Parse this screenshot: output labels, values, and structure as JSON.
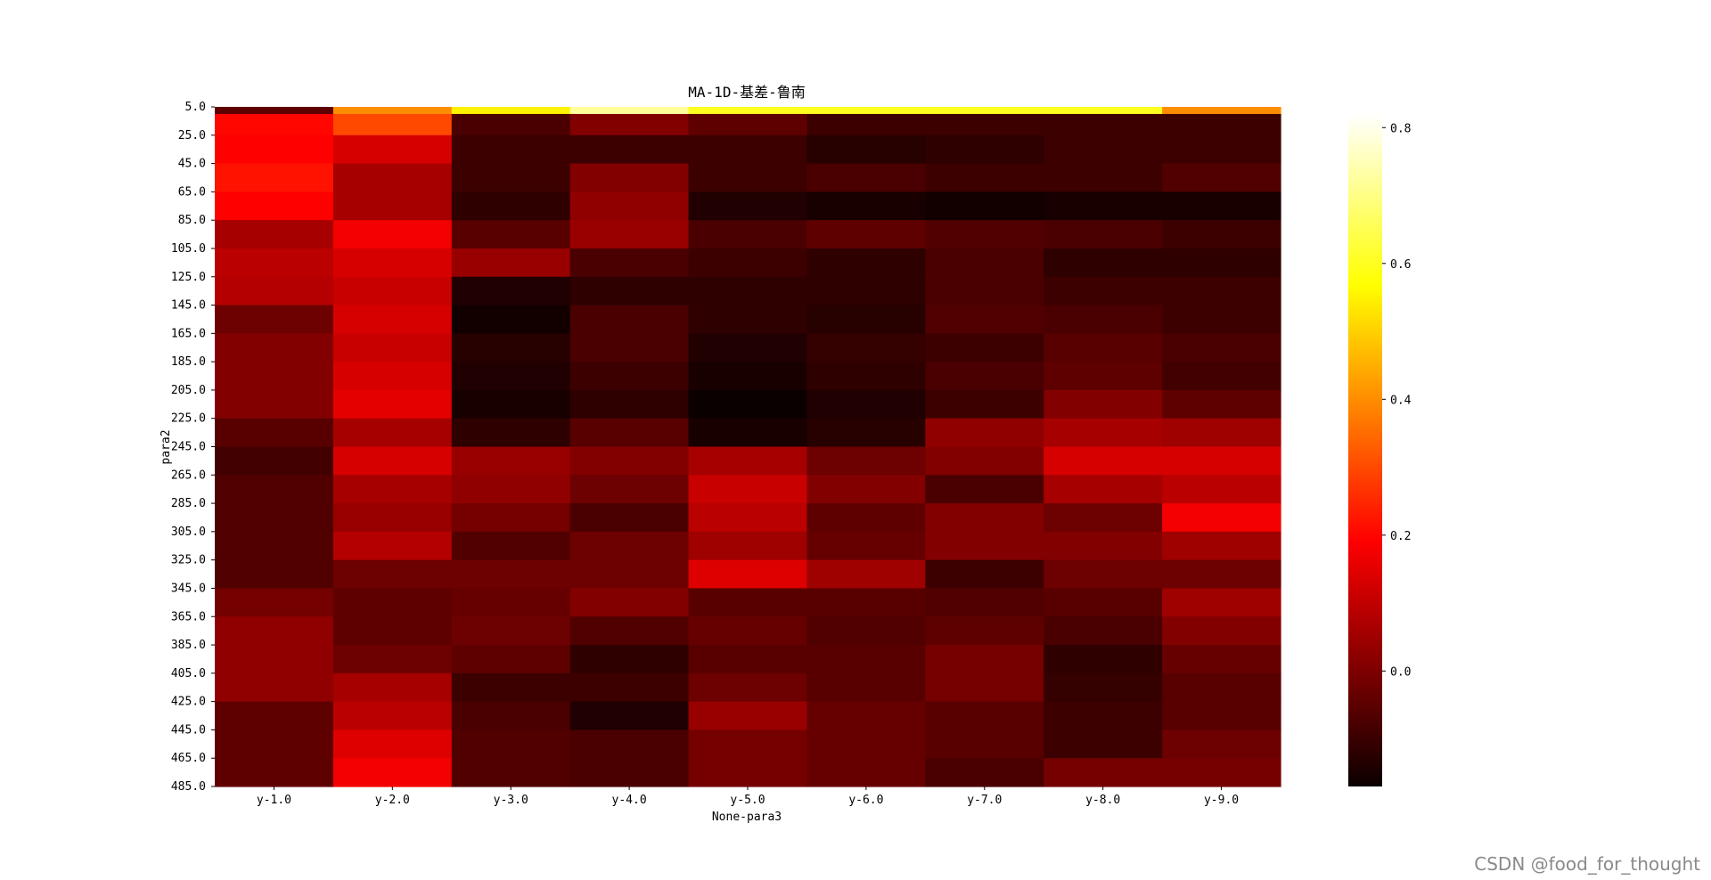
{
  "watermark": "CSDN @food_for_thought",
  "chart_data": {
    "type": "heatmap",
    "title": "MA-1D-基差-鲁南",
    "xlabel": "None-para3",
    "ylabel": "para2",
    "x_categories": [
      "y-1.0",
      "y-2.0",
      "y-3.0",
      "y-4.0",
      "y-5.0",
      "y-6.0",
      "y-7.0",
      "y-8.0",
      "y-9.0"
    ],
    "y_tick_labels": [
      "5.0",
      "25.0",
      "45.0",
      "65.0",
      "85.0",
      "105.0",
      "125.0",
      "145.0",
      "165.0",
      "185.0",
      "205.0",
      "225.0",
      "245.0",
      "265.0",
      "285.0",
      "305.0",
      "325.0",
      "345.0",
      "365.0",
      "385.0",
      "405.0",
      "425.0",
      "445.0",
      "465.0",
      "485.0"
    ],
    "colormap": "hot",
    "colorbar": {
      "min": -0.17,
      "max": 0.82,
      "ticks": [
        0.0,
        0.2,
        0.4,
        0.6,
        0.8
      ]
    },
    "row_starts": [
      5,
      10,
      25,
      45,
      65,
      85,
      105,
      125,
      145,
      165,
      185,
      205,
      225,
      245,
      265,
      285,
      305,
      325,
      345,
      365,
      385,
      405,
      425,
      445,
      465
    ],
    "row_end": 485,
    "values": [
      [
        -0.05,
        0.4,
        0.55,
        0.72,
        0.6,
        0.6,
        0.6,
        0.6,
        0.4
      ],
      [
        0.2,
        0.3,
        -0.08,
        0.0,
        -0.05,
        -0.1,
        -0.1,
        -0.1,
        -0.1
      ],
      [
        0.18,
        0.12,
        -0.1,
        -0.1,
        -0.1,
        -0.13,
        -0.12,
        -0.1,
        -0.1
      ],
      [
        0.22,
        0.05,
        -0.1,
        0.0,
        -0.1,
        -0.08,
        -0.1,
        -0.1,
        -0.07
      ],
      [
        0.18,
        0.05,
        -0.12,
        0.02,
        -0.14,
        -0.15,
        -0.16,
        -0.15,
        -0.15
      ],
      [
        0.05,
        0.16,
        -0.06,
        0.03,
        -0.08,
        -0.05,
        -0.07,
        -0.08,
        -0.1
      ],
      [
        0.08,
        0.12,
        0.03,
        -0.08,
        -0.1,
        -0.12,
        -0.08,
        -0.12,
        -0.12
      ],
      [
        0.07,
        0.1,
        -0.14,
        -0.12,
        -0.12,
        -0.12,
        -0.08,
        -0.1,
        -0.1
      ],
      [
        -0.03,
        0.12,
        -0.16,
        -0.08,
        -0.12,
        -0.13,
        -0.07,
        -0.08,
        -0.1
      ],
      [
        0.0,
        0.1,
        -0.13,
        -0.08,
        -0.14,
        -0.11,
        -0.1,
        -0.06,
        -0.08
      ],
      [
        0.0,
        0.12,
        -0.14,
        -0.1,
        -0.15,
        -0.12,
        -0.08,
        -0.05,
        -0.09
      ],
      [
        0.0,
        0.14,
        -0.15,
        -0.12,
        -0.17,
        -0.14,
        -0.1,
        0.0,
        -0.05
      ],
      [
        -0.06,
        0.05,
        -0.12,
        -0.06,
        -0.15,
        -0.13,
        0.02,
        0.05,
        0.04
      ],
      [
        -0.09,
        0.12,
        0.03,
        0.0,
        0.05,
        -0.03,
        0.0,
        0.12,
        0.12
      ],
      [
        -0.07,
        0.05,
        0.02,
        -0.03,
        0.1,
        0.0,
        -0.08,
        0.05,
        0.08
      ],
      [
        -0.07,
        0.03,
        -0.02,
        -0.08,
        0.08,
        -0.05,
        0.0,
        -0.03,
        0.16
      ],
      [
        -0.07,
        0.07,
        -0.07,
        -0.03,
        0.04,
        -0.04,
        0.0,
        0.0,
        0.04
      ],
      [
        -0.07,
        -0.03,
        -0.03,
        -0.03,
        0.13,
        0.04,
        -0.1,
        -0.03,
        -0.03
      ],
      [
        -0.02,
        -0.05,
        -0.04,
        0.0,
        -0.06,
        -0.06,
        -0.07,
        -0.06,
        0.04
      ],
      [
        0.02,
        -0.05,
        -0.03,
        -0.07,
        -0.04,
        -0.07,
        -0.05,
        -0.08,
        0.0
      ],
      [
        0.02,
        -0.03,
        -0.05,
        -0.12,
        -0.06,
        -0.06,
        -0.02,
        -0.12,
        -0.04
      ],
      [
        0.02,
        0.05,
        -0.1,
        -0.1,
        -0.03,
        -0.06,
        -0.02,
        -0.11,
        -0.06
      ],
      [
        -0.05,
        0.08,
        -0.08,
        -0.14,
        0.03,
        -0.04,
        -0.06,
        -0.1,
        -0.06
      ],
      [
        -0.05,
        0.13,
        -0.07,
        -0.08,
        -0.02,
        -0.04,
        -0.06,
        -0.1,
        -0.03
      ],
      [
        -0.05,
        0.16,
        -0.07,
        -0.08,
        -0.02,
        -0.04,
        -0.08,
        -0.02,
        -0.02
      ]
    ]
  }
}
